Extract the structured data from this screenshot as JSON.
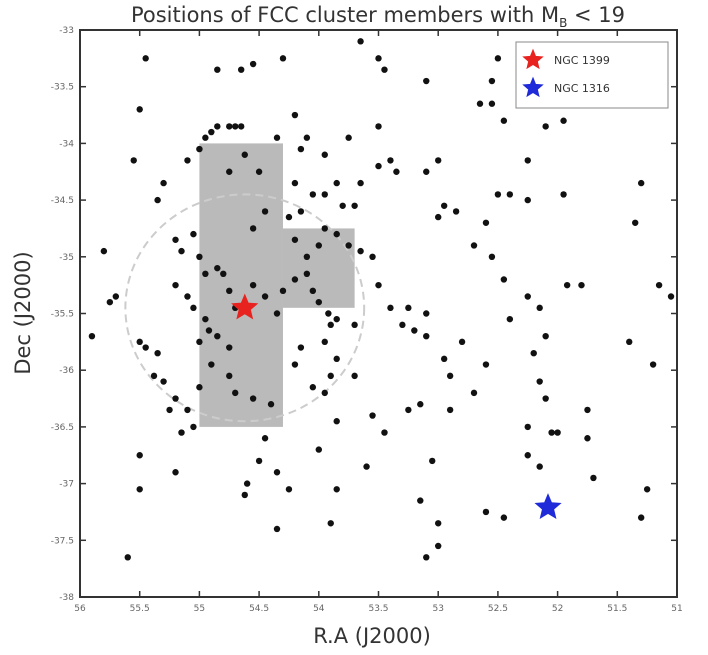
{
  "chart_data": {
    "type": "scatter",
    "title": "Positions of FCC cluster members with M",
    "title_sub": "B",
    "title_tail": " < 19",
    "xlabel": "R.A (J2000)",
    "ylabel": "Dec (J2000)",
    "xlim": [
      56,
      51
    ],
    "ylim": [
      -38,
      -33
    ],
    "xticks": [
      56,
      55.5,
      55,
      54.5,
      54,
      53.5,
      53,
      52.5,
      52,
      51.5,
      51
    ],
    "yticks": [
      -33,
      -33.5,
      -34,
      -34.5,
      -35,
      -35.5,
      -36,
      -36.5,
      -37,
      -37.5,
      -38
    ],
    "grid": false,
    "legend_position": "top-right",
    "legend": [
      {
        "label": "NGC 1399",
        "color": "#e8231f",
        "marker": "star"
      },
      {
        "label": "NGC 1316",
        "color": "#1f2bd8",
        "marker": "star"
      }
    ],
    "highlight_points": [
      {
        "name": "NGC 1399",
        "x": 54.62,
        "y": -35.45,
        "color": "#e8231f"
      },
      {
        "name": "NGC 1316",
        "x": 52.08,
        "y": -37.21,
        "color": "#1f2bd8"
      }
    ],
    "circle": {
      "center_x": 54.62,
      "center_y": -35.45,
      "radius_deg": 1.0,
      "color": "#cccccc",
      "style": "dashed"
    },
    "fields": [
      {
        "x0": 55.0,
        "x1": 54.3,
        "y0": -34.0,
        "y1": -36.5
      },
      {
        "x0": 54.3,
        "x1": 53.7,
        "y0": -34.75,
        "y1": -35.45
      }
    ],
    "field_color": "#b3b3b3",
    "points": [
      [
        55.45,
        -33.25
      ],
      [
        55.5,
        -33.7
      ],
      [
        55.55,
        -34.15
      ],
      [
        55.3,
        -34.35
      ],
      [
        55.35,
        -34.5
      ],
      [
        55.8,
        -34.95
      ],
      [
        55.7,
        -35.35
      ],
      [
        55.75,
        -35.4
      ],
      [
        55.9,
        -35.7
      ],
      [
        55.5,
        -35.75
      ],
      [
        55.45,
        -35.8
      ],
      [
        55.35,
        -35.85
      ],
      [
        55.38,
        -36.05
      ],
      [
        55.3,
        -36.1
      ],
      [
        55.2,
        -36.25
      ],
      [
        55.25,
        -36.35
      ],
      [
        55.1,
        -36.35
      ],
      [
        55.05,
        -36.5
      ],
      [
        55.15,
        -36.55
      ],
      [
        55.5,
        -36.75
      ],
      [
        55.2,
        -36.9
      ],
      [
        55.1,
        -34.15
      ],
      [
        55.0,
        -34.05
      ],
      [
        55.05,
        -34.8
      ],
      [
        55.2,
        -34.85
      ],
      [
        55.15,
        -34.95
      ],
      [
        55.0,
        -35.0
      ],
      [
        54.95,
        -35.15
      ],
      [
        54.85,
        -35.1
      ],
      [
        54.8,
        -35.15
      ],
      [
        55.2,
        -35.25
      ],
      [
        55.1,
        -35.35
      ],
      [
        55.05,
        -35.45
      ],
      [
        54.95,
        -35.55
      ],
      [
        54.92,
        -35.65
      ],
      [
        54.85,
        -35.7
      ],
      [
        54.75,
        -35.8
      ],
      [
        55.0,
        -35.75
      ],
      [
        54.9,
        -35.95
      ],
      [
        54.75,
        -36.05
      ],
      [
        55.0,
        -36.15
      ],
      [
        54.7,
        -36.2
      ],
      [
        54.55,
        -36.25
      ],
      [
        54.62,
        -34.1
      ],
      [
        54.75,
        -34.25
      ],
      [
        54.5,
        -34.25
      ],
      [
        54.85,
        -33.85
      ],
      [
        54.9,
        -33.9
      ],
      [
        54.95,
        -33.95
      ],
      [
        54.75,
        -33.85
      ],
      [
        54.7,
        -33.85
      ],
      [
        54.65,
        -33.85
      ],
      [
        54.85,
        -33.35
      ],
      [
        54.65,
        -33.35
      ],
      [
        54.55,
        -33.3
      ],
      [
        54.3,
        -33.25
      ],
      [
        54.2,
        -33.75
      ],
      [
        53.65,
        -33.1
      ],
      [
        53.5,
        -33.25
      ],
      [
        53.45,
        -33.35
      ],
      [
        53.1,
        -33.45
      ],
      [
        52.55,
        -33.45
      ],
      [
        52.5,
        -33.25
      ],
      [
        52.3,
        -33.35
      ],
      [
        52.65,
        -33.65
      ],
      [
        52.55,
        -33.65
      ],
      [
        52.15,
        -33.65
      ],
      [
        52.1,
        -33.85
      ],
      [
        51.95,
        -33.8
      ],
      [
        52.45,
        -33.8
      ],
      [
        52.25,
        -34.15
      ],
      [
        52.5,
        -34.45
      ],
      [
        52.4,
        -34.45
      ],
      [
        52.25,
        -34.5
      ],
      [
        51.95,
        -34.45
      ],
      [
        52.6,
        -34.7
      ],
      [
        52.7,
        -34.9
      ],
      [
        52.55,
        -35.0
      ],
      [
        52.45,
        -35.2
      ],
      [
        52.25,
        -35.35
      ],
      [
        51.92,
        -35.25
      ],
      [
        51.8,
        -35.25
      ],
      [
        52.15,
        -35.45
      ],
      [
        52.1,
        -35.7
      ],
      [
        52.4,
        -35.55
      ],
      [
        52.2,
        -35.85
      ],
      [
        52.15,
        -36.1
      ],
      [
        52.1,
        -36.25
      ],
      [
        52.25,
        -36.5
      ],
      [
        52.0,
        -36.55
      ],
      [
        51.75,
        -36.35
      ],
      [
        51.75,
        -36.6
      ],
      [
        52.05,
        -36.55
      ],
      [
        52.25,
        -36.75
      ],
      [
        52.15,
        -36.85
      ],
      [
        53.0,
        -34.15
      ],
      [
        53.1,
        -34.25
      ],
      [
        53.35,
        -34.25
      ],
      [
        53.4,
        -34.15
      ],
      [
        53.5,
        -34.2
      ],
      [
        53.65,
        -34.35
      ],
      [
        53.85,
        -34.35
      ],
      [
        53.95,
        -34.45
      ],
      [
        53.8,
        -34.55
      ],
      [
        54.05,
        -34.45
      ],
      [
        54.15,
        -34.6
      ],
      [
        54.45,
        -34.6
      ],
      [
        54.55,
        -34.75
      ],
      [
        54.25,
        -34.65
      ],
      [
        54.2,
        -34.85
      ],
      [
        54.1,
        -35.0
      ],
      [
        53.95,
        -34.75
      ],
      [
        54.0,
        -34.9
      ],
      [
        53.85,
        -34.8
      ],
      [
        53.75,
        -34.9
      ],
      [
        53.65,
        -34.95
      ],
      [
        53.55,
        -35.0
      ],
      [
        53.5,
        -35.25
      ],
      [
        53.4,
        -35.45
      ],
      [
        53.3,
        -35.6
      ],
      [
        53.2,
        -35.65
      ],
      [
        53.1,
        -35.7
      ],
      [
        53.25,
        -35.45
      ],
      [
        53.1,
        -35.5
      ],
      [
        54.75,
        -35.3
      ],
      [
        54.7,
        -35.45
      ],
      [
        54.55,
        -35.25
      ],
      [
        54.45,
        -35.35
      ],
      [
        54.35,
        -35.5
      ],
      [
        54.3,
        -35.3
      ],
      [
        54.2,
        -35.2
      ],
      [
        54.1,
        -35.15
      ],
      [
        54.05,
        -35.3
      ],
      [
        54.0,
        -35.4
      ],
      [
        53.92,
        -35.5
      ],
      [
        53.85,
        -35.55
      ],
      [
        53.7,
        -35.6
      ],
      [
        53.9,
        -35.6
      ],
      [
        53.95,
        -35.75
      ],
      [
        53.85,
        -35.9
      ],
      [
        53.7,
        -36.05
      ],
      [
        53.9,
        -36.05
      ],
      [
        54.15,
        -35.8
      ],
      [
        54.2,
        -35.95
      ],
      [
        54.05,
        -36.15
      ],
      [
        54.4,
        -36.3
      ],
      [
        54.45,
        -36.6
      ],
      [
        54.5,
        -36.8
      ],
      [
        54.6,
        -37.0
      ],
      [
        54.62,
        -37.1
      ],
      [
        54.35,
        -36.9
      ],
      [
        54.0,
        -36.7
      ],
      [
        53.95,
        -36.2
      ],
      [
        53.85,
        -36.45
      ],
      [
        53.55,
        -36.4
      ],
      [
        53.45,
        -36.55
      ],
      [
        53.25,
        -36.35
      ],
      [
        53.15,
        -36.3
      ],
      [
        54.25,
        -37.05
      ],
      [
        53.85,
        -37.05
      ],
      [
        53.9,
        -37.35
      ],
      [
        54.35,
        -37.4
      ],
      [
        53.6,
        -36.85
      ],
      [
        53.05,
        -36.8
      ],
      [
        52.9,
        -36.35
      ],
      [
        52.7,
        -36.2
      ],
      [
        52.9,
        -36.05
      ],
      [
        52.95,
        -35.9
      ],
      [
        52.8,
        -35.75
      ],
      [
        52.6,
        -35.95
      ],
      [
        53.0,
        -34.65
      ],
      [
        52.95,
        -34.55
      ],
      [
        52.85,
        -34.6
      ],
      [
        54.2,
        -34.35
      ],
      [
        54.15,
        -34.05
      ],
      [
        54.1,
        -33.95
      ],
      [
        54.35,
        -33.95
      ],
      [
        53.5,
        -33.85
      ],
      [
        53.95,
        -34.1
      ],
      [
        53.75,
        -33.95
      ],
      [
        53.7,
        -34.55
      ],
      [
        55.5,
        -37.05
      ],
      [
        55.6,
        -37.65
      ],
      [
        53.15,
        -37.15
      ],
      [
        53.0,
        -37.35
      ],
      [
        53.0,
        -37.55
      ],
      [
        53.1,
        -37.65
      ],
      [
        52.6,
        -37.25
      ],
      [
        52.45,
        -37.3
      ],
      [
        51.3,
        -37.3
      ],
      [
        51.25,
        -37.05
      ],
      [
        51.7,
        -36.95
      ],
      [
        51.4,
        -35.75
      ],
      [
        51.2,
        -35.95
      ],
      [
        51.15,
        -35.25
      ],
      [
        51.05,
        -35.35
      ],
      [
        51.35,
        -34.7
      ],
      [
        51.3,
        -34.35
      ],
      [
        51.35,
        -33.55
      ],
      [
        51.5,
        -33.45
      ],
      [
        51.6,
        -33.25
      ],
      [
        51.55,
        -33.15
      ],
      [
        51.95,
        -33.15
      ]
    ]
  }
}
